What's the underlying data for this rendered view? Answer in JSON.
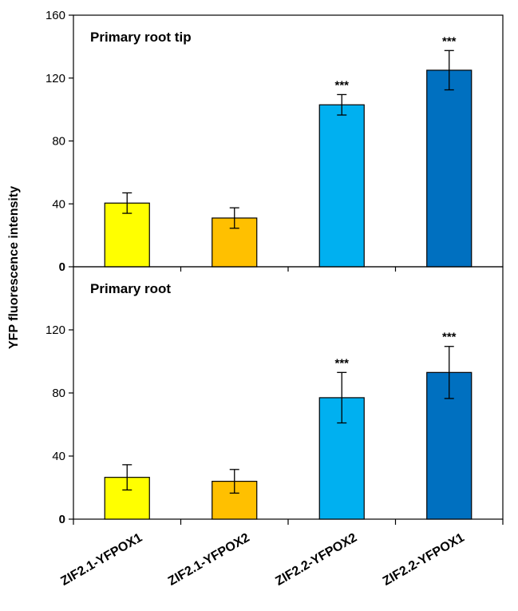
{
  "chart_data": {
    "type": "bar",
    "ylabel": "YFP fluorescence intensity",
    "categories": [
      "ZIF2.1-YFPOX1",
      "ZIF2.1-YFPOX2",
      "ZIF2.2-YFPOX2",
      "ZIF2.2-YFPOX1"
    ],
    "colors": [
      "#FFFF00",
      "#FFC000",
      "#00B0F0",
      "#0070C0"
    ],
    "grid": false,
    "panels": [
      {
        "title": "Primary root tip",
        "ylim": [
          0,
          160
        ],
        "yticks": [
          0,
          40,
          80,
          120,
          160
        ],
        "values": [
          40.5,
          31,
          103,
          125
        ],
        "errors": [
          6.5,
          6.5,
          6.5,
          12.5
        ],
        "significance": [
          "",
          "",
          "***",
          "***"
        ]
      },
      {
        "title": "Primary root",
        "ylim": [
          0,
          160
        ],
        "yticks": [
          0,
          40,
          80,
          120
        ],
        "values": [
          26.5,
          24,
          77,
          93
        ],
        "errors": [
          8,
          7.5,
          16,
          16.5
        ],
        "significance": [
          "",
          "",
          "***",
          "***"
        ]
      }
    ]
  }
}
